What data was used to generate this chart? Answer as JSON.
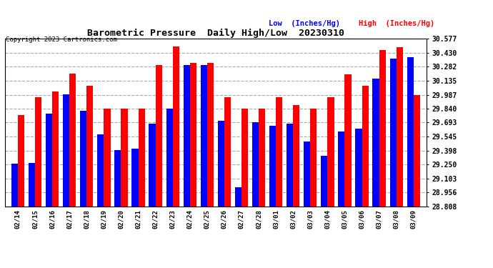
{
  "title": "Barometric Pressure  Daily High/Low  20230310",
  "copyright": "Copyright 2023 Cartronics.com",
  "legend_low": "Low  (Inches/Hg)",
  "legend_high": "High  (Inches/Hg)",
  "dates": [
    "02/14",
    "02/15",
    "02/16",
    "02/17",
    "02/18",
    "02/19",
    "02/20",
    "02/21",
    "02/22",
    "02/23",
    "02/24",
    "02/25",
    "02/26",
    "02/27",
    "02/28",
    "03/01",
    "03/02",
    "03/03",
    "03/04",
    "03/05",
    "03/06",
    "03/07",
    "03/08",
    "03/09"
  ],
  "high_values": [
    29.77,
    29.96,
    30.02,
    30.21,
    30.08,
    29.84,
    29.84,
    29.84,
    30.3,
    30.5,
    30.32,
    30.32,
    29.96,
    29.84,
    29.84,
    29.96,
    29.88,
    29.84,
    29.96,
    30.2,
    30.08,
    30.46,
    30.49,
    29.987
  ],
  "low_values": [
    29.26,
    29.27,
    29.79,
    29.99,
    29.82,
    29.57,
    29.4,
    29.42,
    29.68,
    29.84,
    30.3,
    30.3,
    29.71,
    29.01,
    29.7,
    29.66,
    29.68,
    29.49,
    29.34,
    29.6,
    29.63,
    30.16,
    30.37,
    30.38
  ],
  "ymin": 28.808,
  "ymax": 30.577,
  "yticks": [
    28.808,
    28.956,
    29.103,
    29.25,
    29.398,
    29.545,
    29.693,
    29.84,
    29.987,
    30.135,
    30.282,
    30.43,
    30.577
  ],
  "bar_color_high": "#FF0000",
  "bar_color_low": "#0000FF",
  "background_color": "#FFFFFF",
  "grid_color": "#AAAAAA",
  "title_color": "#000000",
  "copyright_color": "#000000",
  "legend_low_color": "#0000FF",
  "legend_high_color": "#FF0000"
}
